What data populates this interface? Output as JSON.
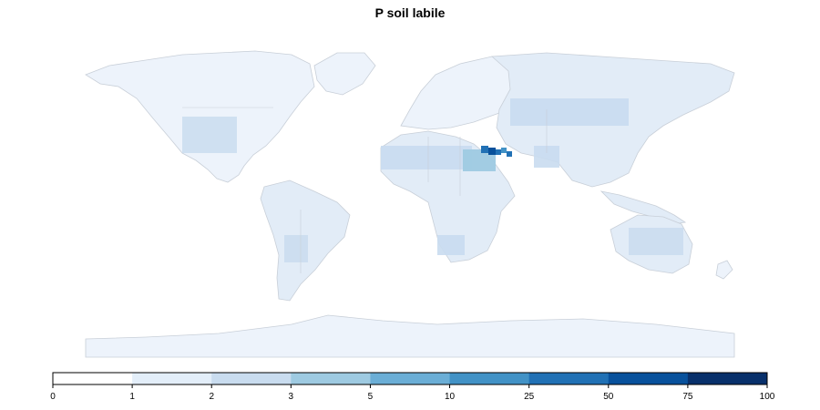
{
  "title": "P soil labile",
  "legend": {
    "breaks": [
      "0",
      "1",
      "2",
      "3",
      "5",
      "10",
      "25",
      "50",
      "75",
      "100"
    ],
    "colors": [
      "#ffffff",
      "#e3eef9",
      "#c9dcef",
      "#9ecae1",
      "#6baed6",
      "#4292c6",
      "#2171b5",
      "#08519c",
      "#08306b"
    ]
  },
  "colors": {
    "background": "#ffffff",
    "land_low": "#e2ecf7",
    "land_mid": "#c9dcef",
    "land_high": "#9ecae1",
    "hotspot": "#2171b5",
    "outline": "#c8cfd8"
  }
}
